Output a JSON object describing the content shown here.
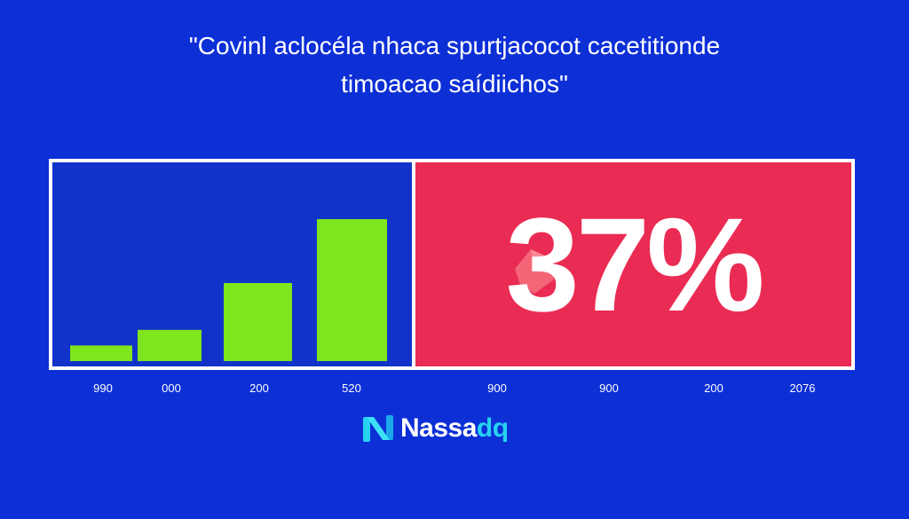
{
  "headline": {
    "line1": "\"Covinl aclocéla nhaca spurtjacocot cacetitionde",
    "line2": "timoacao saídiichos\""
  },
  "colors": {
    "background": "#0d2fd6",
    "left_panel": "#1233c9",
    "right_panel": "#ea2b53",
    "bar": "#7fe51c",
    "frame": "#ffffff",
    "logo_accent": "#27d3f0"
  },
  "stat": {
    "value": "37%"
  },
  "chart_data": {
    "type": "bar",
    "categories": [
      "990",
      "000",
      "200",
      "520"
    ],
    "values": [
      0.11,
      0.22,
      0.55,
      1.0
    ],
    "value_scale": "relative",
    "ylim": [
      0,
      1.1
    ],
    "bar_color": "#7fe51c"
  },
  "x_axis_labels": [
    "990",
    "000",
    "200",
    "520",
    "900",
    "900",
    "200",
    "2076"
  ],
  "logo": {
    "name_main": "Nassa",
    "name_accent": "dq",
    "icon": "nasdaq-n-icon"
  }
}
